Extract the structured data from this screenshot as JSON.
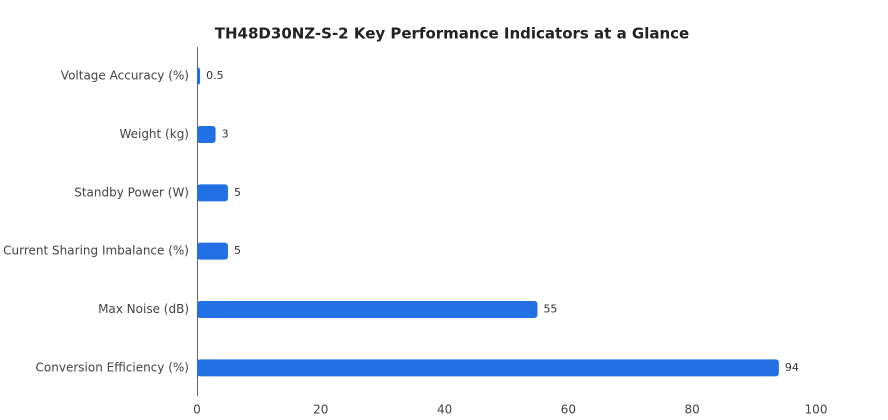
{
  "chart_data": {
    "type": "bar",
    "orientation": "horizontal",
    "title": "TH48D30NZ-S-2 Key Performance Indicators at a Glance",
    "categories": [
      "Voltage Accuracy (%)",
      "Weight (kg)",
      "Standby Power (W)",
      "Current Sharing Imbalance (%)",
      "Max Noise (dB)",
      "Conversion Efficiency (%)"
    ],
    "values": [
      0.5,
      3,
      5,
      5,
      55,
      94
    ],
    "color": "#2270e4",
    "xlim": [
      0,
      100
    ],
    "xticks": [
      0,
      20,
      40,
      60,
      80,
      100
    ],
    "grid": false
  }
}
